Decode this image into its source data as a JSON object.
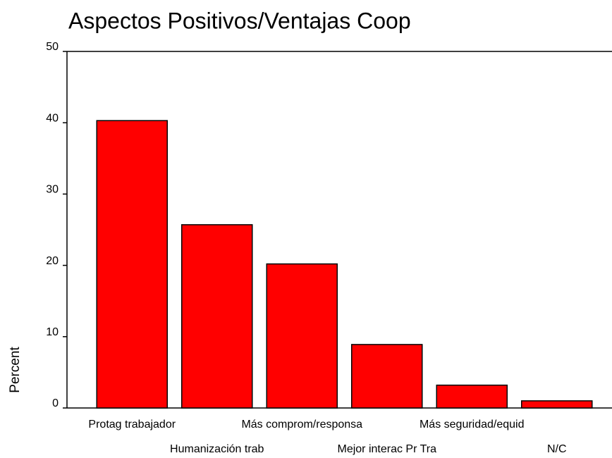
{
  "chart_data": {
    "type": "bar",
    "title": "Aspectos Positivos/Ventajas Coop",
    "ylabel": "Percent",
    "categories": [
      "Protag trabajador",
      "Humanización trab",
      "Más comprom/responsa",
      "Mejor interac Pr Tra",
      "Más seguridad/equid",
      "N/C"
    ],
    "values": [
      40.3,
      25.7,
      20.2,
      8.9,
      3.2,
      1.0
    ],
    "color": "#ff0000",
    "ylim": [
      0,
      50
    ],
    "yticks": [
      0,
      10,
      20,
      30,
      40,
      50
    ]
  }
}
